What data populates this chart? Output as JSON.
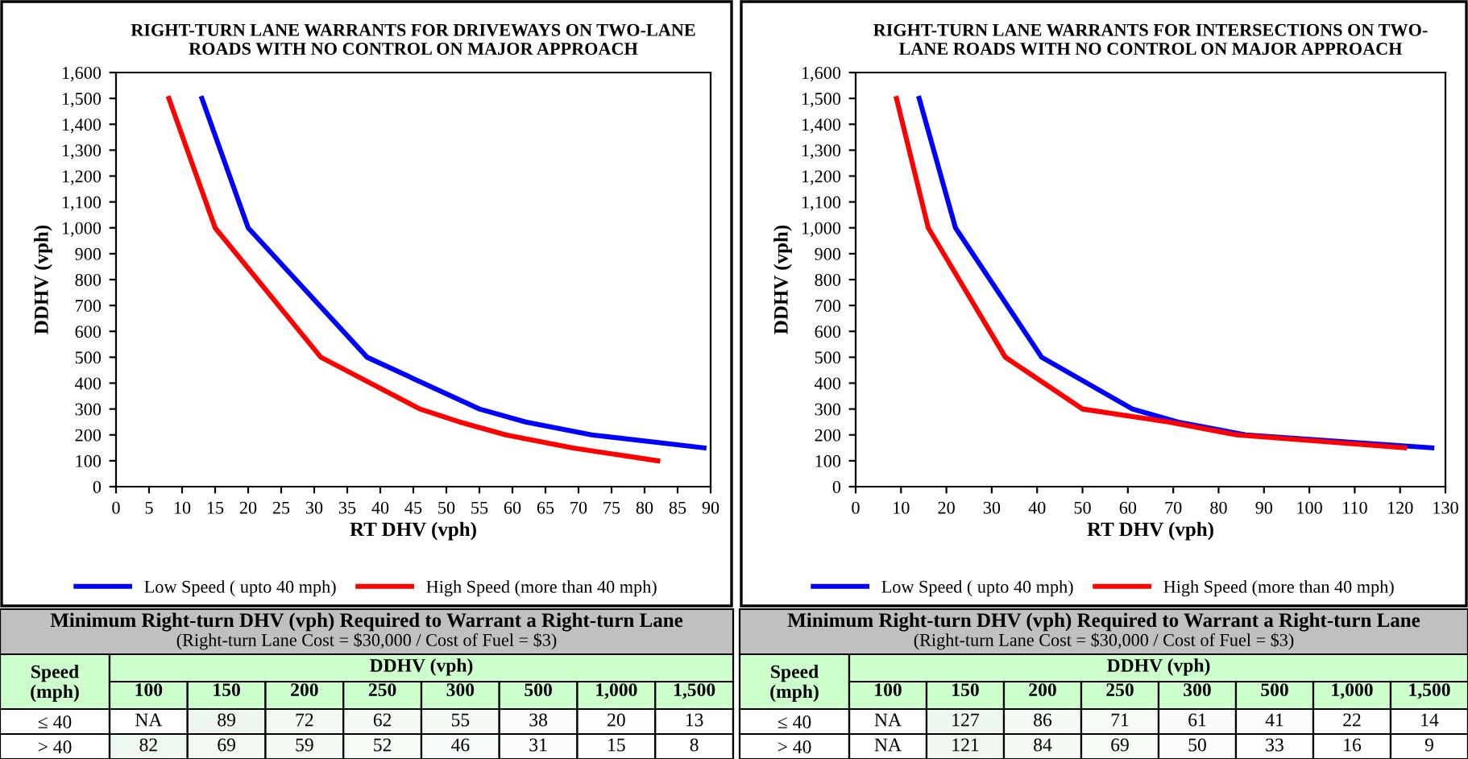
{
  "chart_data": [
    {
      "type": "line",
      "title": "RIGHT-TURN LANE WARRANTS FOR DRIVEWAYS ON TWO-LANE\nROADS WITH NO CONTROL ON MAJOR APPROACH",
      "xlabel": "RT DHV (vph)",
      "ylabel": "DDHV (vph)",
      "xlim": [
        0,
        90
      ],
      "xticks": [
        0,
        5,
        10,
        15,
        20,
        25,
        30,
        35,
        40,
        45,
        50,
        55,
        60,
        65,
        70,
        75,
        80,
        85,
        90
      ],
      "ylim": [
        0,
        1600
      ],
      "yticks": [
        0,
        100,
        200,
        300,
        400,
        500,
        600,
        700,
        800,
        900,
        {
          "value": 1000,
          "label": "1,000"
        },
        {
          "value": 1100,
          "label": "1,100"
        },
        {
          "value": 1200,
          "label": "1,200"
        },
        {
          "value": 1300,
          "label": "1,300"
        },
        {
          "value": 1400,
          "label": "1,400"
        },
        {
          "value": 1500,
          "label": "1,500"
        },
        {
          "value": 1600,
          "label": "1,600"
        }
      ],
      "grid": false,
      "legend": "bottom",
      "line_style": "solid",
      "marker": "none",
      "series": [
        {
          "name": "Low Speed ( upto 40 mph)",
          "color": "#0000ff",
          "x": [
            89,
            72,
            62,
            55,
            38,
            20,
            13
          ],
          "values": [
            150,
            200,
            250,
            300,
            500,
            1000,
            1500
          ]
        },
        {
          "name": "High Speed (more than 40 mph)",
          "color": "#ff0000",
          "x": [
            82,
            69,
            59,
            52,
            46,
            31,
            15,
            8
          ],
          "values": [
            100,
            150,
            200,
            250,
            300,
            500,
            1000,
            1500
          ]
        }
      ]
    },
    {
      "type": "line",
      "title": "RIGHT-TURN LANE WARRANTS FOR INTERSECTIONS ON TWO-\nLANE ROADS WITH NO CONTROL ON MAJOR APPROACH",
      "xlabel": "RT DHV (vph)",
      "ylabel": "DDHV (vph)",
      "xlim": [
        0,
        130
      ],
      "xticks": [
        0,
        10,
        20,
        30,
        40,
        50,
        60,
        70,
        80,
        90,
        100,
        110,
        120,
        130
      ],
      "ylim": [
        0,
        1600
      ],
      "yticks": [
        0,
        100,
        200,
        300,
        400,
        500,
        600,
        700,
        800,
        900,
        {
          "value": 1000,
          "label": "1,000"
        },
        {
          "value": 1100,
          "label": "1,100"
        },
        {
          "value": 1200,
          "label": "1,200"
        },
        {
          "value": 1300,
          "label": "1,300"
        },
        {
          "value": 1400,
          "label": "1,400"
        },
        {
          "value": 1500,
          "label": "1,500"
        },
        {
          "value": 1600,
          "label": "1,600"
        }
      ],
      "grid": false,
      "legend": "bottom",
      "line_style": "solid",
      "marker": "none",
      "series": [
        {
          "name": "Low Speed ( upto 40 mph)",
          "color": "#0000ff",
          "x": [
            127,
            86,
            71,
            61,
            41,
            22,
            14
          ],
          "values": [
            150,
            200,
            250,
            300,
            500,
            1000,
            1500
          ]
        },
        {
          "name": "High Speed (more than 40 mph)",
          "color": "#ff0000",
          "x": [
            121,
            84,
            69,
            50,
            33,
            16,
            9
          ],
          "values": [
            150,
            200,
            250,
            300,
            500,
            1000,
            1500
          ]
        }
      ]
    },
    {
      "type": "heatmap",
      "title": "Minimum Right-turn DHV (vph) Required to Warrant a Right-turn Lane",
      "subtitle": "(Right-turn Lane Cost = $30,000 / Cost of Fuel = $3)",
      "xlabel": "DDHV (vph)",
      "ylabel": "Speed\n(mph)",
      "categories": [
        "100",
        "150",
        "200",
        "250",
        "300",
        "500",
        "1,000",
        "1,500"
      ],
      "y_categories": [
        "≤ 40",
        "> 40"
      ],
      "cells": [
        [
          null,
          89,
          72,
          62,
          55,
          38,
          20,
          13
        ],
        [
          82,
          69,
          59,
          52,
          46,
          31,
          15,
          8
        ]
      ],
      "cell_labels": [
        [
          "NA",
          "89",
          "72",
          "62",
          "55",
          "38",
          "20",
          "13"
        ],
        [
          "82",
          "69",
          "59",
          "52",
          "46",
          "31",
          "15",
          "8"
        ]
      ]
    },
    {
      "type": "heatmap",
      "title": "Minimum Right-turn DHV (vph) Required to Warrant a Right-turn Lane",
      "subtitle": "(Right-turn Lane Cost = $30,000 / Cost of Fuel = $3)",
      "xlabel": "DDHV (vph)",
      "ylabel": "Speed\n(mph)",
      "categories": [
        "100",
        "150",
        "200",
        "250",
        "300",
        "500",
        "1,000",
        "1,500"
      ],
      "y_categories": [
        "≤ 40",
        "> 40"
      ],
      "cells": [
        [
          null,
          127,
          86,
          71,
          61,
          41,
          22,
          14
        ],
        [
          null,
          121,
          84,
          69,
          50,
          33,
          16,
          9
        ]
      ],
      "cell_labels": [
        [
          "NA",
          "127",
          "86",
          "71",
          "61",
          "41",
          "22",
          "14"
        ],
        [
          "NA",
          "121",
          "84",
          "69",
          "50",
          "33",
          "16",
          "9"
        ]
      ]
    }
  ]
}
